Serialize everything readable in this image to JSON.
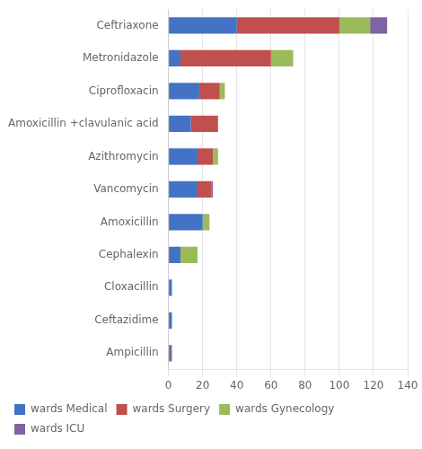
{
  "chart_data": {
    "type": "bar",
    "orientation": "horizontal",
    "stacked": true,
    "categories": [
      "Ceftriaxone",
      "Metronidazole",
      "Ciprofloxacin",
      "Amoxicillin +clavulanic acid",
      "Azithromycin",
      "Vancomycin",
      "Amoxicillin",
      "Cephalexin",
      "Cloxacillin",
      "Ceftazidime",
      "Ampicillin"
    ],
    "series": [
      {
        "name": "wards Medical",
        "color": "#4472c4",
        "values": [
          40,
          7,
          18,
          13,
          17,
          17,
          20,
          7,
          2,
          2,
          0
        ]
      },
      {
        "name": "wards Surgery",
        "color": "#c0504d",
        "values": [
          60,
          53,
          12,
          16,
          9,
          8,
          0,
          0,
          0,
          0,
          0
        ]
      },
      {
        "name": "wards Gynecology",
        "color": "#9bbb59",
        "values": [
          18,
          13,
          3,
          0,
          3,
          0,
          4,
          10,
          0,
          0,
          0
        ]
      },
      {
        "name": "wards ICU",
        "color": "#8064a2",
        "values": [
          10,
          0,
          0,
          0,
          0,
          1,
          0,
          0,
          0,
          0,
          2
        ]
      }
    ],
    "xlim": [
      0,
      140
    ],
    "xticks": [
      0,
      20,
      40,
      60,
      80,
      100,
      120,
      140
    ],
    "grid": true,
    "legend": "bottom"
  }
}
